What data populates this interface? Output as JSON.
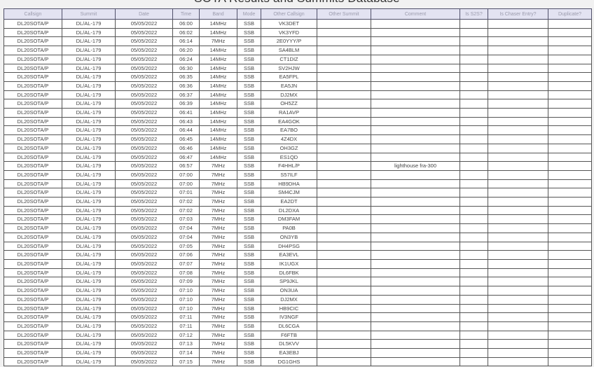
{
  "page": {
    "title": "SOTA Results and Summits Database"
  },
  "colors": {
    "page_bg": "#f1f1f1",
    "header_bg": "#e3e3f2",
    "header_text": "#9b9bac",
    "cell_border": "#555555",
    "cell_text": "#454545",
    "row_bg": "#ffffff"
  },
  "table": {
    "columns": [
      "Callsign",
      "Summit",
      "Date",
      "Time",
      "Band",
      "Mode",
      "Other Callsign",
      "Other Summit",
      "Comment",
      "Is S2S?",
      "Is Chaser Entry?",
      "Duplicate?"
    ],
    "column_keys": [
      "callsign",
      "summit",
      "date",
      "time",
      "band",
      "mode",
      "other-callsign",
      "other-summit",
      "comment",
      "is-s2s",
      "is-chaser-entry",
      "duplicate"
    ],
    "rows": [
      [
        "DL20SOTA/P",
        "DL/AL-179",
        "05/05/2022",
        "06:00",
        "14MHz",
        "SSB",
        "VK3DET",
        "",
        "",
        "",
        "",
        ""
      ],
      [
        "DL20SOTA/P",
        "DL/AL-179",
        "05/05/2022",
        "06:02",
        "14MHz",
        "SSB",
        "VK3YFD",
        "",
        "",
        "",
        "",
        ""
      ],
      [
        "DL20SOTA/P",
        "DL/AL-179",
        "05/05/2022",
        "06:14",
        "7MHz",
        "SSB",
        "2E0YYY/P",
        "",
        "",
        "",
        "",
        ""
      ],
      [
        "DL20SOTA/P",
        "DL/AL-179",
        "05/05/2022",
        "06:20",
        "14MHz",
        "SSB",
        "SA4BLM",
        "",
        "",
        "",
        "",
        ""
      ],
      [
        "DL20SOTA/P",
        "DL/AL-179",
        "05/05/2022",
        "06:24",
        "14MHz",
        "SSB",
        "CT1DIZ",
        "",
        "",
        "",
        "",
        ""
      ],
      [
        "DL20SOTA/P",
        "DL/AL-179",
        "05/05/2022",
        "06:30",
        "14MHz",
        "SSB",
        "SV2HJW",
        "",
        "",
        "",
        "",
        ""
      ],
      [
        "DL20SOTA/P",
        "DL/AL-179",
        "05/05/2022",
        "06:35",
        "14MHz",
        "SSB",
        "EA5FPL",
        "",
        "",
        "",
        "",
        ""
      ],
      [
        "DL20SOTA/P",
        "DL/AL-179",
        "05/05/2022",
        "06:36",
        "14MHz",
        "SSB",
        "EA5JN",
        "",
        "",
        "",
        "",
        ""
      ],
      [
        "DL20SOTA/P",
        "DL/AL-179",
        "05/05/2022",
        "06:37",
        "14MHz",
        "SSB",
        "DJ2MX",
        "",
        "",
        "",
        "",
        ""
      ],
      [
        "DL20SOTA/P",
        "DL/AL-179",
        "05/05/2022",
        "06:39",
        "14MHz",
        "SSB",
        "OH5ZZ",
        "",
        "",
        "",
        "",
        ""
      ],
      [
        "DL20SOTA/P",
        "DL/AL-179",
        "05/05/2022",
        "06:41",
        "14MHz",
        "SSB",
        "RA1AVP",
        "",
        "",
        "",
        "",
        ""
      ],
      [
        "DL20SOTA/P",
        "DL/AL-179",
        "05/05/2022",
        "06:43",
        "14MHz",
        "SSB",
        "EA4GOK",
        "",
        "",
        "",
        "",
        ""
      ],
      [
        "DL20SOTA/P",
        "DL/AL-179",
        "05/05/2022",
        "06:44",
        "14MHz",
        "SSB",
        "EA7BO",
        "",
        "",
        "",
        "",
        ""
      ],
      [
        "DL20SOTA/P",
        "DL/AL-179",
        "05/05/2022",
        "06:45",
        "14MHz",
        "SSB",
        "4Z4DX",
        "",
        "",
        "",
        "",
        ""
      ],
      [
        "DL20SOTA/P",
        "DL/AL-179",
        "05/05/2022",
        "06:46",
        "14MHz",
        "SSB",
        "OH3GZ",
        "",
        "",
        "",
        "",
        ""
      ],
      [
        "DL20SOTA/P",
        "DL/AL-179",
        "05/05/2022",
        "06:47",
        "14MHz",
        "SSB",
        "ES1QD",
        "",
        "",
        "",
        "",
        ""
      ],
      [
        "DL20SOTA/P",
        "DL/AL-179",
        "05/05/2022",
        "06:57",
        "7MHz",
        "SSB",
        "F4HHL/P",
        "",
        "lighthouse fra-300",
        "",
        "",
        ""
      ],
      [
        "DL20SOTA/P",
        "DL/AL-179",
        "05/05/2022",
        "07:00",
        "7MHz",
        "SSB",
        "S57ILF",
        "",
        "",
        "",
        "",
        ""
      ],
      [
        "DL20SOTA/P",
        "DL/AL-179",
        "05/05/2022",
        "07:00",
        "7MHz",
        "SSB",
        "HB9DHA",
        "",
        "",
        "",
        "",
        ""
      ],
      [
        "DL20SOTA/P",
        "DL/AL-179",
        "05/05/2022",
        "07:01",
        "7MHz",
        "SSB",
        "SM4CJM",
        "",
        "",
        "",
        "",
        ""
      ],
      [
        "DL20SOTA/P",
        "DL/AL-179",
        "05/05/2022",
        "07:02",
        "7MHz",
        "SSB",
        "EA2DT",
        "",
        "",
        "",
        "",
        ""
      ],
      [
        "DL20SOTA/P",
        "DL/AL-179",
        "05/05/2022",
        "07:02",
        "7MHz",
        "SSB",
        "DL2DXA",
        "",
        "",
        "",
        "",
        ""
      ],
      [
        "DL20SOTA/P",
        "DL/AL-179",
        "05/05/2022",
        "07:03",
        "7MHz",
        "SSB",
        "DM3FAM",
        "",
        "",
        "",
        "",
        ""
      ],
      [
        "DL20SOTA/P",
        "DL/AL-179",
        "05/05/2022",
        "07:04",
        "7MHz",
        "SSB",
        "PA0B",
        "",
        "",
        "",
        "",
        ""
      ],
      [
        "DL20SOTA/P",
        "DL/AL-179",
        "05/05/2022",
        "07:04",
        "7MHz",
        "SSB",
        "ON3YB",
        "",
        "",
        "",
        "",
        ""
      ],
      [
        "DL20SOTA/P",
        "DL/AL-179",
        "05/05/2022",
        "07:05",
        "7MHz",
        "SSB",
        "DH4PSG",
        "",
        "",
        "",
        "",
        ""
      ],
      [
        "DL20SOTA/P",
        "DL/AL-179",
        "05/05/2022",
        "07:06",
        "7MHz",
        "SSB",
        "EA3EVL",
        "",
        "",
        "",
        "",
        ""
      ],
      [
        "DL20SOTA/P",
        "DL/AL-179",
        "05/05/2022",
        "07:07",
        "7MHz",
        "SSB",
        "IK1UGX",
        "",
        "",
        "",
        "",
        ""
      ],
      [
        "DL20SOTA/P",
        "DL/AL-179",
        "05/05/2022",
        "07:08",
        "7MHz",
        "SSB",
        "DL6FBK",
        "",
        "",
        "",
        "",
        ""
      ],
      [
        "DL20SOTA/P",
        "DL/AL-179",
        "05/05/2022",
        "07:09",
        "7MHz",
        "SSB",
        "SP9JKL",
        "",
        "",
        "",
        "",
        ""
      ],
      [
        "DL20SOTA/P",
        "DL/AL-179",
        "05/05/2022",
        "07:10",
        "7MHz",
        "SSB",
        "ON3UA",
        "",
        "",
        "",
        "",
        ""
      ],
      [
        "DL20SOTA/P",
        "DL/AL-179",
        "05/05/2022",
        "07:10",
        "7MHz",
        "SSB",
        "DJ2MX",
        "",
        "",
        "",
        "",
        ""
      ],
      [
        "DL20SOTA/P",
        "DL/AL-179",
        "05/05/2022",
        "07:10",
        "7MHz",
        "SSB",
        "HB9CIC",
        "",
        "",
        "",
        "",
        ""
      ],
      [
        "DL20SOTA/P",
        "DL/AL-179",
        "05/05/2022",
        "07:11",
        "7MHz",
        "SSB",
        "IV3NGF",
        "",
        "",
        "",
        "",
        ""
      ],
      [
        "DL20SOTA/P",
        "DL/AL-179",
        "05/05/2022",
        "07:11",
        "7MHz",
        "SSB",
        "DL6CGA",
        "",
        "",
        "",
        "",
        ""
      ],
      [
        "DL20SOTA/P",
        "DL/AL-179",
        "05/05/2022",
        "07:12",
        "7MHz",
        "SSB",
        "F6FTB",
        "",
        "",
        "",
        "",
        ""
      ],
      [
        "DL20SOTA/P",
        "DL/AL-179",
        "05/05/2022",
        "07:13",
        "7MHz",
        "SSB",
        "DL5KVV",
        "",
        "",
        "",
        "",
        ""
      ],
      [
        "DL20SOTA/P",
        "DL/AL-179",
        "05/05/2022",
        "07:14",
        "7MHz",
        "SSB",
        "EA3EBJ",
        "",
        "",
        "",
        "",
        ""
      ],
      [
        "DL20SOTA/P",
        "DL/AL-179",
        "05/05/2022",
        "07:15",
        "7MHz",
        "SSB",
        "DG1GHS",
        "",
        "",
        "",
        "",
        ""
      ]
    ]
  }
}
